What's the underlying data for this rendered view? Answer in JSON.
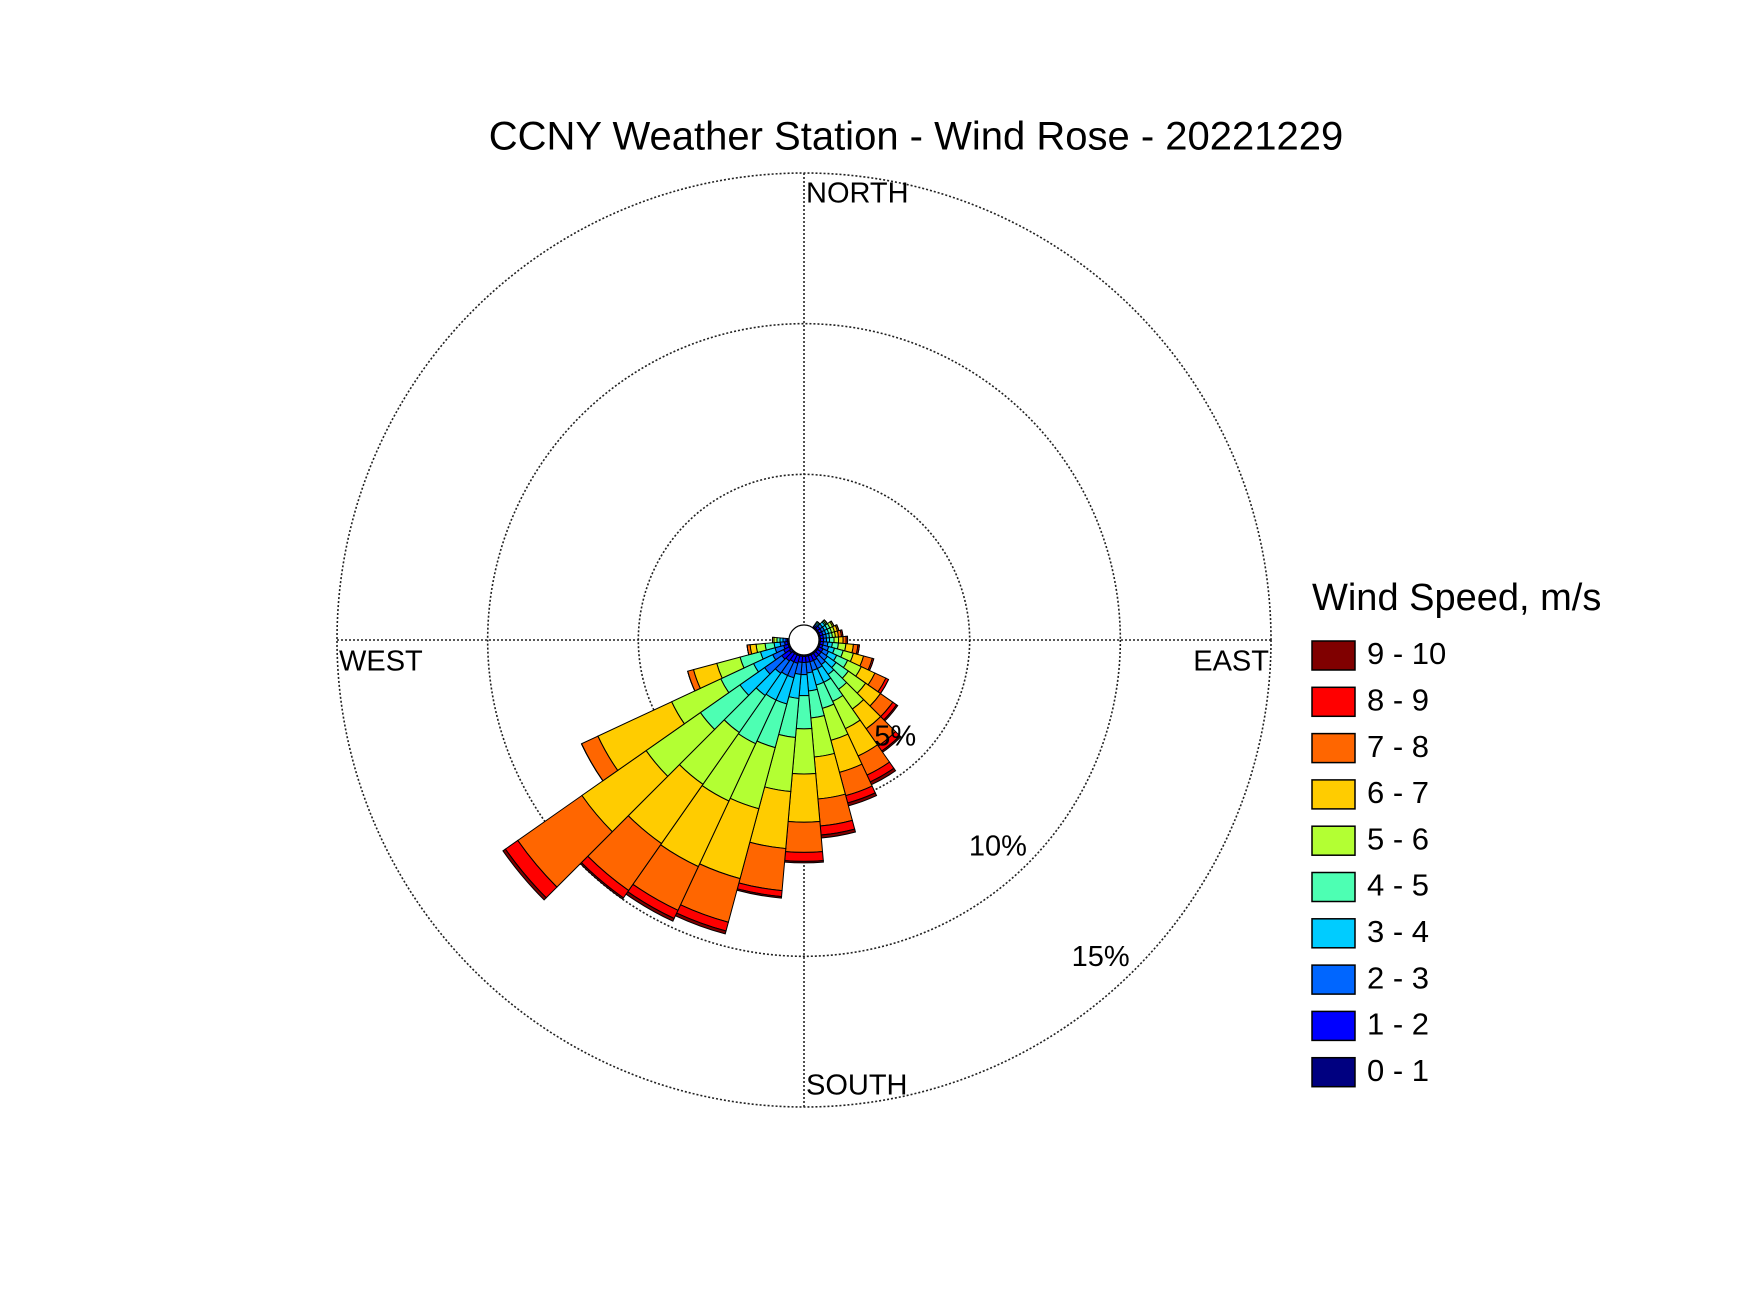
{
  "chart_data": {
    "type": "windrose",
    "title": "CCNY Weather Station - Wind Rose - 20221229",
    "direction_labels": {
      "north": "NORTH",
      "east": "EAST",
      "south": "SOUTH",
      "west": "WEST"
    },
    "legend_title": "Wind Speed, m/s",
    "x": [
      40,
      50,
      60,
      70,
      80,
      90,
      100,
      110,
      120,
      130,
      140,
      150,
      160,
      170,
      180,
      190,
      200,
      210,
      220,
      230,
      240,
      250,
      260,
      270
    ],
    "rlim": [
      0,
      15
    ],
    "rticks": [
      {
        "value": 5,
        "label": "5%"
      },
      {
        "value": 10,
        "label": "10%"
      },
      {
        "value": 15,
        "label": "15%"
      }
    ],
    "grid": true,
    "series": [
      {
        "name": "9 - 10",
        "color": "#800000",
        "values": [
          0,
          0,
          0,
          0,
          0,
          0,
          0,
          0,
          0,
          0.05,
          0.05,
          0.1,
          0.1,
          0.1,
          0.05,
          0.05,
          0.1,
          0.1,
          0.05,
          0.1,
          0,
          0,
          0,
          0
        ]
      },
      {
        "name": "8 - 9",
        "color": "#ff0000",
        "values": [
          0,
          0,
          0,
          0,
          0.05,
          0.05,
          0.05,
          0.05,
          0.1,
          0.15,
          0.2,
          0.25,
          0.25,
          0.3,
          0.3,
          0.2,
          0.3,
          0.3,
          0.3,
          0.5,
          0,
          0,
          0,
          0
        ]
      },
      {
        "name": "7 - 8",
        "color": "#ff6600",
        "values": [
          0,
          0,
          0,
          0.05,
          0.1,
          0.1,
          0.15,
          0.3,
          0.4,
          0.5,
          0.7,
          0.7,
          0.8,
          0.9,
          1.0,
          1.4,
          1.5,
          1.6,
          1.9,
          2.6,
          0.6,
          0.2,
          0.1,
          0
        ]
      },
      {
        "name": "6 - 7",
        "color": "#ffcc00",
        "values": [
          0,
          0,
          0.05,
          0.1,
          0.1,
          0.15,
          0.25,
          0.35,
          0.5,
          0.6,
          0.8,
          1.0,
          1.1,
          1.4,
          1.6,
          1.9,
          2.4,
          2.4,
          2.4,
          2.6,
          2.7,
          0.8,
          0.2,
          0.05
        ]
      },
      {
        "name": "5 - 6",
        "color": "#b3ff33",
        "values": [
          0,
          0.05,
          0.1,
          0.1,
          0.1,
          0.15,
          0.25,
          0.35,
          0.5,
          0.7,
          0.8,
          1.0,
          1.1,
          1.3,
          1.5,
          1.8,
          2.1,
          2.1,
          2.1,
          2.2,
          1.8,
          0.8,
          0.3,
          0.1
        ]
      },
      {
        "name": "4 - 5",
        "color": "#4dffb3",
        "values": [
          0.05,
          0.05,
          0.1,
          0.1,
          0.1,
          0.15,
          0.2,
          0.3,
          0.4,
          0.5,
          0.6,
          0.7,
          0.8,
          0.9,
          1.1,
          1.3,
          1.5,
          1.6,
          1.5,
          1.6,
          1.2,
          0.7,
          0.3,
          0.1
        ]
      },
      {
        "name": "3 - 4",
        "color": "#00ccff",
        "values": [
          0.05,
          0.1,
          0.1,
          0.1,
          0.1,
          0.1,
          0.15,
          0.2,
          0.3,
          0.35,
          0.4,
          0.5,
          0.5,
          0.6,
          0.7,
          0.8,
          0.9,
          0.9,
          0.9,
          1.0,
          0.7,
          0.5,
          0.2,
          0.1
        ]
      },
      {
        "name": "2 - 3",
        "color": "#0066ff",
        "values": [
          0.05,
          0.1,
          0.1,
          0.1,
          0.1,
          0.1,
          0.15,
          0.2,
          0.2,
          0.25,
          0.3,
          0.3,
          0.3,
          0.35,
          0.4,
          0.4,
          0.5,
          0.5,
          0.5,
          0.7,
          0.4,
          0.3,
          0.15,
          0.1
        ]
      },
      {
        "name": "1 - 2",
        "color": "#0000ff",
        "values": [
          0.05,
          0.1,
          0.1,
          0.1,
          0.1,
          0.1,
          0.1,
          0.1,
          0.15,
          0.15,
          0.15,
          0.2,
          0.2,
          0.2,
          0.2,
          0.2,
          0.25,
          0.25,
          0.3,
          0.3,
          0.2,
          0.15,
          0.1,
          0.05
        ]
      },
      {
        "name": "0 - 1",
        "color": "#000080",
        "values": [
          0.05,
          0.05,
          0.05,
          0.05,
          0.05,
          0.05,
          0.05,
          0.05,
          0.05,
          0.05,
          0.05,
          0.05,
          0.05,
          0.05,
          0.05,
          0.05,
          0.05,
          0.05,
          0.05,
          0.1,
          0.05,
          0.05,
          0.05,
          0.05
        ]
      }
    ]
  }
}
